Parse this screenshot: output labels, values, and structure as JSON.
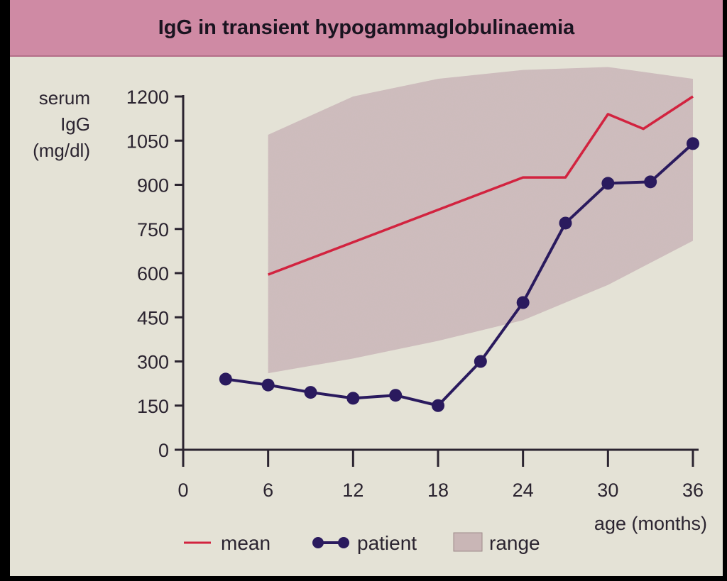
{
  "chart_data": {
    "type": "line",
    "title": "IgG in transient hypogammaglobulinaemia",
    "ylabel_lines": [
      "serum",
      "IgG",
      "(mg/dl)"
    ],
    "xlabel": "age (months)",
    "x_ticks": [
      0,
      6,
      12,
      18,
      24,
      30,
      36
    ],
    "y_ticks": [
      0,
      150,
      300,
      450,
      600,
      750,
      900,
      1050,
      1200
    ],
    "xlim": [
      0,
      36
    ],
    "ylim": [
      0,
      1200
    ],
    "grid": false,
    "legend_placement": "bottom",
    "series": [
      {
        "name": "mean",
        "color": "#d2233f",
        "marker": "none",
        "x": [
          6,
          24,
          27,
          30,
          32.5,
          36
        ],
        "y": [
          595,
          925,
          925,
          1140,
          1090,
          1200
        ]
      },
      {
        "name": "patient",
        "color": "#2a1a5e",
        "marker": "circle",
        "x": [
          3,
          6,
          9,
          12,
          15,
          18,
          21,
          24,
          27,
          30,
          33,
          36
        ],
        "y": [
          240,
          220,
          195,
          175,
          185,
          150,
          300,
          500,
          770,
          905,
          910,
          1040
        ]
      }
    ],
    "range": {
      "name": "range",
      "color": "#b9a3a3",
      "x": [
        6,
        12,
        18,
        24,
        30,
        36
      ],
      "upper": [
        1070,
        1200,
        1260,
        1290,
        1300,
        1260
      ],
      "lower": [
        260,
        310,
        370,
        440,
        560,
        710
      ]
    }
  }
}
